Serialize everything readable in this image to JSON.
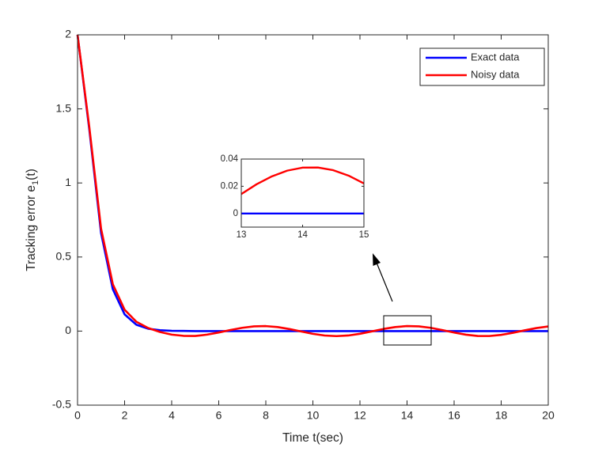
{
  "chart_data": [
    {
      "type": "line",
      "xlabel": "Time t(sec)",
      "ylabel": [
        "Tracking error  e",
        "1",
        "(t)"
      ],
      "x": [
        0,
        0.5,
        1,
        1.5,
        2,
        2.5,
        3,
        3.5,
        4,
        4.5,
        5,
        5.5,
        6,
        6.5,
        7,
        7.5,
        8,
        8.5,
        9,
        9.5,
        10,
        10.5,
        11,
        11.5,
        12,
        12.5,
        13,
        13.5,
        14,
        14.5,
        15,
        15.5,
        16,
        16.5,
        17,
        17.5,
        18,
        18.5,
        19,
        19.5,
        20
      ],
      "series": [
        {
          "name": "Exact data",
          "color": "#0000ff",
          "values": [
            2,
            1.361,
            0.662,
            0.282,
            0.113,
            0.043,
            0.016,
            0.006,
            0.002,
            0.001,
            0,
            0,
            0,
            0,
            0,
            0,
            0,
            0,
            0,
            0,
            0,
            0,
            0,
            0,
            0,
            0,
            0,
            0,
            0,
            0,
            0,
            0,
            0,
            0,
            0,
            0,
            0,
            0,
            0,
            0,
            0
          ]
        },
        {
          "name": "Noisy data",
          "color": "#ff0000",
          "values": [
            2,
            1.377,
            0.691,
            0.316,
            0.144,
            0.063,
            0.021,
            -0.006,
            -0.024,
            -0.032,
            -0.033,
            -0.024,
            -0.0095,
            0.0073,
            0.0223,
            0.0319,
            0.0336,
            0.0271,
            0.014,
            -0.0026,
            -0.0185,
            -0.0299,
            -0.034,
            -0.0298,
            -0.0182,
            -0.0022,
            0.0143,
            0.0273,
            0.0337,
            0.0318,
            0.0221,
            0.007,
            -0.0098,
            -0.0242,
            -0.0327,
            -0.0332,
            -0.0255,
            -0.0116,
            0.0051,
            0.0205,
            0.031
          ]
        }
      ],
      "xlim": [
        0,
        20
      ],
      "xticks": [
        0,
        2,
        4,
        6,
        8,
        10,
        12,
        14,
        16,
        18,
        20
      ],
      "ylim": [
        -0.5,
        2
      ],
      "yticks": [
        -0.5,
        0,
        0.5,
        1,
        1.5,
        2
      ],
      "legend": "upper right"
    },
    {
      "type": "line",
      "x": [
        13,
        13.25,
        13.5,
        13.75,
        14,
        14.25,
        14.5,
        14.75,
        15
      ],
      "series": [
        {
          "color": "#0000ff",
          "values": [
            0,
            0,
            0,
            0,
            0,
            0,
            0,
            0,
            0
          ]
        },
        {
          "color": "#ff0000",
          "values": [
            0.0143,
            0.0215,
            0.0273,
            0.0315,
            0.0337,
            0.0338,
            0.0318,
            0.0278,
            0.0221
          ]
        }
      ],
      "xlim": [
        13,
        15
      ],
      "xticks": [
        13,
        14,
        15
      ],
      "ylim": [
        -0.01,
        0.04
      ],
      "yticks": [
        0,
        0.02,
        0.04
      ]
    }
  ]
}
